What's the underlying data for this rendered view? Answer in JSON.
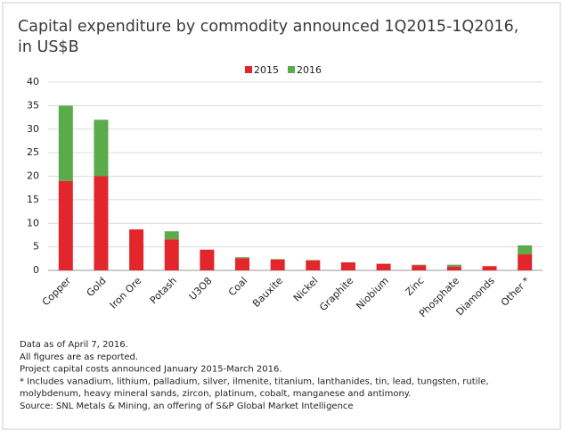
{
  "chart_data": {
    "type": "bar",
    "stacked": true,
    "title": [
      "Capital expenditure by commodity announced 1Q2015-1Q2016,",
      "in US$B"
    ],
    "categories": [
      "Copper",
      "Gold",
      "Iron Ore",
      "Potash",
      "U3O8",
      "Coal",
      "Bauxite",
      "Nickel",
      "Graphite",
      "Niobium",
      "Zinc",
      "Phosphate",
      "Diamonds",
      "Other *"
    ],
    "series": [
      {
        "name": "2015",
        "color": "#e2262b",
        "values": [
          19,
          20,
          8.7,
          6.6,
          4.4,
          2.6,
          2.3,
          2.1,
          1.7,
          1.4,
          1.1,
          0.8,
          0.9,
          3.4
        ]
      },
      {
        "name": "2016",
        "color": "#5aab4a",
        "values": [
          16,
          12,
          0,
          1.7,
          0,
          0.2,
          0.1,
          0.1,
          0,
          0,
          0.1,
          0.4,
          0,
          1.9
        ]
      }
    ],
    "ylim": [
      0,
      40
    ],
    "yticks": [
      0,
      5,
      10,
      15,
      20,
      25,
      30,
      35,
      40
    ],
    "grid": true,
    "legend": "top",
    "notes": [
      "Data as of April 7, 2016.",
      "All figures are as reported.",
      "Project capital costs announced January 2015-March 2016.",
      "* Includes vanadium, lithium, palladium, silver, ilmenite, titanium, lanthanides, tin, lead, tungsten, rutile,",
      "molybdenum, heavy mineral sands, zircon, platinum, cobalt, manganese and antimony.",
      "Source: SNL Metals & Mining, an offering of S&P Global Market Intelligence"
    ]
  }
}
